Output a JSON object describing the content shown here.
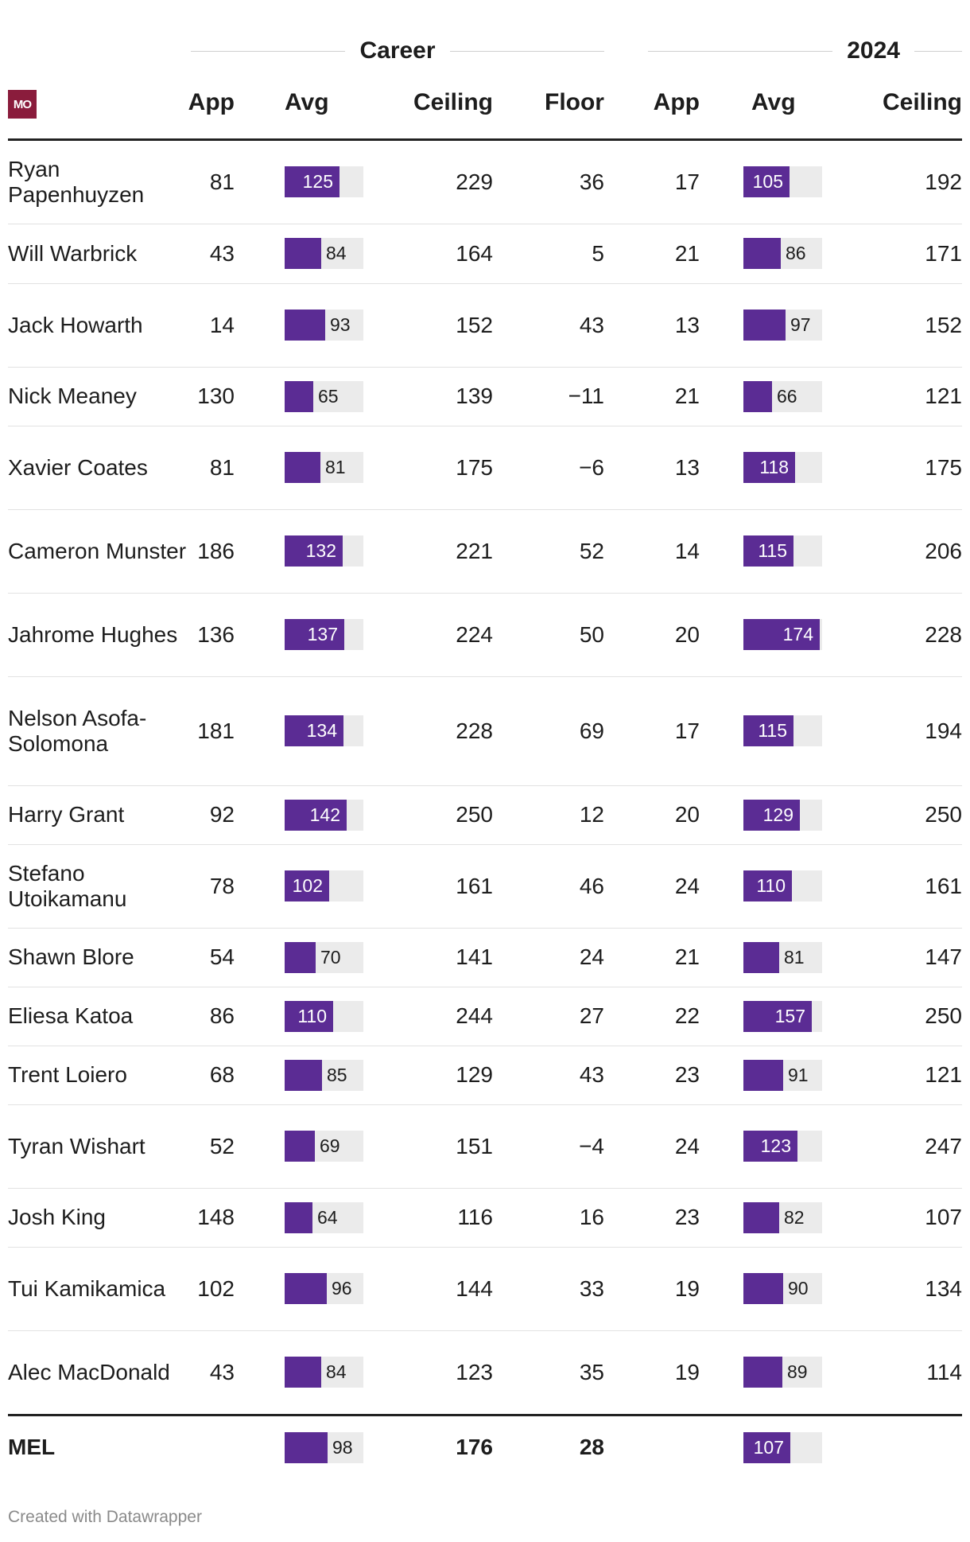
{
  "groups": {
    "career": "Career",
    "season": "2024"
  },
  "logo": "MO",
  "columns": [
    "App",
    "Avg",
    "Ceiling",
    "Floor",
    "App",
    "Avg",
    "Ceiling"
  ],
  "bar_max": 180,
  "colors": {
    "bar": "#5b2c94",
    "track": "#ebebeb",
    "logo": "#8a1c3c"
  },
  "rows": [
    {
      "name": "Ryan Papenhuyzen",
      "app": "81",
      "avg": 125,
      "ceiling": "229",
      "floor": "36",
      "app2024": "17",
      "avg2024": 105,
      "ceiling2024": "192"
    },
    {
      "name": "Will Warbrick",
      "app": "43",
      "avg": 84,
      "ceiling": "164",
      "floor": "5",
      "app2024": "21",
      "avg2024": 86,
      "ceiling2024": "171"
    },
    {
      "name": "Jack Howarth",
      "app": "14",
      "avg": 93,
      "ceiling": "152",
      "floor": "43",
      "app2024": "13",
      "avg2024": 97,
      "ceiling2024": "152"
    },
    {
      "name": "Nick Meaney",
      "app": "130",
      "avg": 65,
      "ceiling": "139",
      "floor": "−11",
      "app2024": "21",
      "avg2024": 66,
      "ceiling2024": "121"
    },
    {
      "name": "Xavier Coates",
      "app": "81",
      "avg": 81,
      "ceiling": "175",
      "floor": "−6",
      "app2024": "13",
      "avg2024": 118,
      "ceiling2024": "175"
    },
    {
      "name": "Cameron Munster",
      "app": "186",
      "avg": 132,
      "ceiling": "221",
      "floor": "52",
      "app2024": "14",
      "avg2024": 115,
      "ceiling2024": "206"
    },
    {
      "name": "Jahrome Hughes",
      "app": "136",
      "avg": 137,
      "ceiling": "224",
      "floor": "50",
      "app2024": "20",
      "avg2024": 174,
      "ceiling2024": "228"
    },
    {
      "name": "Nelson Asofa-Solomona",
      "app": "181",
      "avg": 134,
      "ceiling": "228",
      "floor": "69",
      "app2024": "17",
      "avg2024": 115,
      "ceiling2024": "194"
    },
    {
      "name": "Harry Grant",
      "app": "92",
      "avg": 142,
      "ceiling": "250",
      "floor": "12",
      "app2024": "20",
      "avg2024": 129,
      "ceiling2024": "250"
    },
    {
      "name": "Stefano Utoikamanu",
      "app": "78",
      "avg": 102,
      "ceiling": "161",
      "floor": "46",
      "app2024": "24",
      "avg2024": 110,
      "ceiling2024": "161"
    },
    {
      "name": "Shawn Blore",
      "app": "54",
      "avg": 70,
      "ceiling": "141",
      "floor": "24",
      "app2024": "21",
      "avg2024": 81,
      "ceiling2024": "147"
    },
    {
      "name": "Eliesa Katoa",
      "app": "86",
      "avg": 110,
      "ceiling": "244",
      "floor": "27",
      "app2024": "22",
      "avg2024": 157,
      "ceiling2024": "250"
    },
    {
      "name": "Trent Loiero",
      "app": "68",
      "avg": 85,
      "ceiling": "129",
      "floor": "43",
      "app2024": "23",
      "avg2024": 91,
      "ceiling2024": "121"
    },
    {
      "name": "Tyran Wishart",
      "app": "52",
      "avg": 69,
      "ceiling": "151",
      "floor": "−4",
      "app2024": "24",
      "avg2024": 123,
      "ceiling2024": "247"
    },
    {
      "name": "Josh King",
      "app": "148",
      "avg": 64,
      "ceiling": "116",
      "floor": "16",
      "app2024": "23",
      "avg2024": 82,
      "ceiling2024": "107"
    },
    {
      "name": "Tui Kamikamica",
      "app": "102",
      "avg": 96,
      "ceiling": "144",
      "floor": "33",
      "app2024": "19",
      "avg2024": 90,
      "ceiling2024": "134"
    },
    {
      "name": "Alec MacDonald",
      "app": "43",
      "avg": 84,
      "ceiling": "123",
      "floor": "35",
      "app2024": "19",
      "avg2024": 89,
      "ceiling2024": "114"
    }
  ],
  "total": {
    "name": "MEL",
    "app": "",
    "avg": 98,
    "ceiling": "176",
    "floor": "28",
    "app2024": "",
    "avg2024": 107,
    "ceiling2024": ""
  },
  "footer": "Created with Datawrapper"
}
